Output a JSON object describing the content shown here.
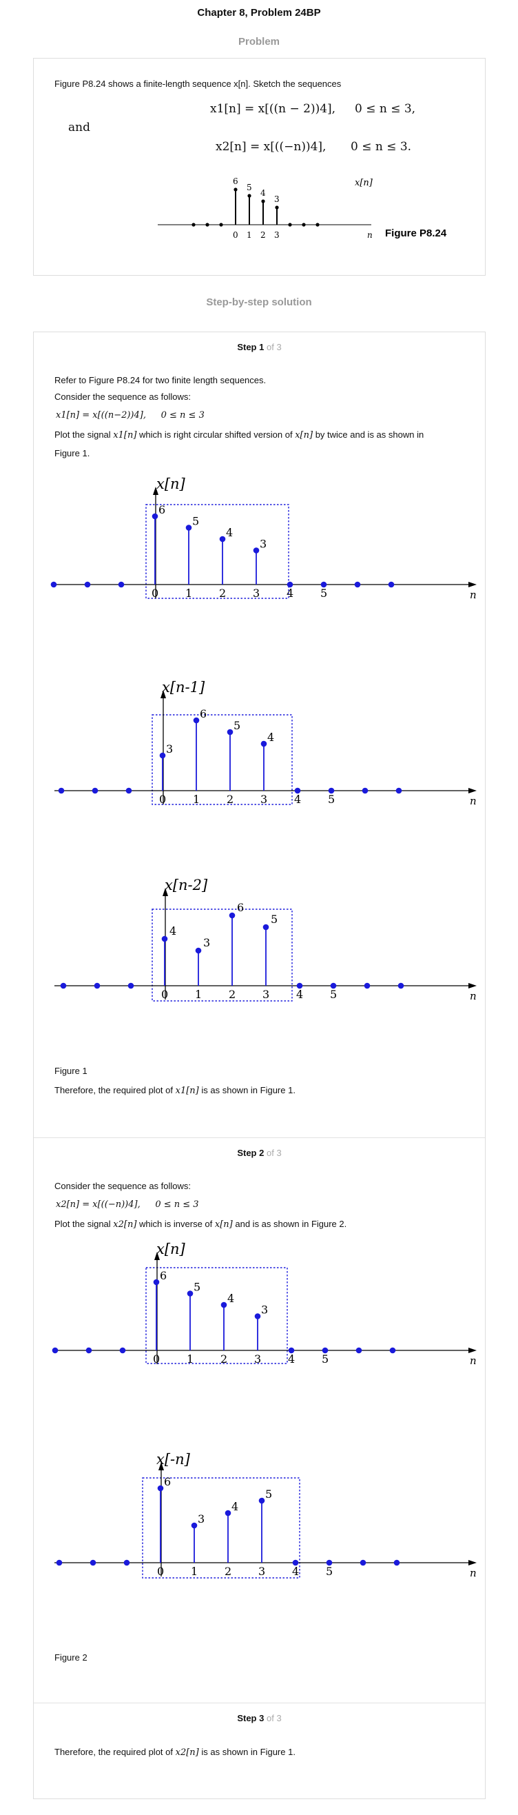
{
  "page": {
    "title": "Chapter 8, Problem 24BP",
    "problem_heading": "Problem",
    "solution_heading": "Step-by-step solution"
  },
  "problem": {
    "intro": "Figure P8.24 shows a finite-length sequence x[n]. Sketch the sequences",
    "eq1": "x1[n] = x[((n − 2))4],",
    "eq1_range": "0 ≤ n ≤ 3,",
    "and": "and",
    "eq2": "x2[n] = x[((−n))4],",
    "eq2_range": "0 ≤ n ≤ 3.",
    "figure_label": "Figure P8.24",
    "plot_label": "x[n]",
    "axis_var": "n",
    "values": [
      "6",
      "5",
      "4",
      "3"
    ],
    "ticks": [
      "0",
      "1",
      "2",
      "3"
    ]
  },
  "steps": {
    "step_word": "Step",
    "of_3": "of 3",
    "step1": {
      "num": "1",
      "p1": "Refer to Figure P8.24 for two finite length sequences.",
      "p2": "Consider the sequence as follows:",
      "eq": "x1[n] = x[((n−2))4],",
      "eq_range": "0 ≤ n ≤ 3",
      "p3_a": "Plot the signal",
      "p3_sym": "x1[n]",
      "p3_b": "which is right circular shifted version of",
      "p3_sym2": "x[n]",
      "p3_c": "by twice and is as shown in",
      "p3_d": "Figure 1.",
      "figure_caption": "Figure 1",
      "conclusion_a": "Therefore, the required plot of",
      "conclusion_sym": "x1[n]",
      "conclusion_b": "is as shown in Figure 1."
    },
    "step2": {
      "num": "2",
      "p1": "Consider the sequence as follows:",
      "eq": "x2[n] = x[((−n))4],",
      "eq_range": "0 ≤ n ≤ 3",
      "p2_a": "Plot the signal",
      "p2_sym": "x2[n]",
      "p2_b": "which is inverse of",
      "p2_sym2": "x[n]",
      "p2_c": "and is as shown in Figure 2.",
      "figure_caption": "Figure 2"
    },
    "step3": {
      "num": "3",
      "conclusion_a": "Therefore, the required plot of",
      "conclusion_sym": "x2[n]",
      "conclusion_b": "is as shown in Figure 1."
    }
  },
  "colors": {
    "stem": "#1a1adb",
    "box": "#1a1adb"
  },
  "chart_data": [
    {
      "type": "stem",
      "title": "x[n]",
      "xlabel": "n",
      "x": [
        -4,
        -3,
        -2,
        -1,
        0,
        1,
        2,
        3,
        4,
        5,
        6,
        7
      ],
      "values": [
        0,
        0,
        0,
        0,
        6,
        5,
        4,
        3,
        0,
        0,
        0,
        0
      ],
      "xticks": [
        "0",
        "1",
        "2",
        "3"
      ],
      "extra_ticks": [
        "4",
        "5"
      ]
    },
    {
      "type": "stem",
      "title": "x[n-1]",
      "xlabel": "n",
      "x": [
        -4,
        -3,
        -2,
        -1,
        0,
        1,
        2,
        3,
        4,
        5,
        6,
        7
      ],
      "values": [
        0,
        0,
        0,
        0,
        3,
        6,
        5,
        4,
        0,
        0,
        0,
        0
      ],
      "xticks": [
        "0",
        "1",
        "2",
        "3"
      ],
      "extra_ticks": [
        "4",
        "5"
      ]
    },
    {
      "type": "stem",
      "title": "x[n-2]",
      "xlabel": "n",
      "x": [
        -4,
        -3,
        -2,
        -1,
        0,
        1,
        2,
        3,
        4,
        5,
        6,
        7
      ],
      "values": [
        0,
        0,
        0,
        0,
        4,
        3,
        6,
        5,
        0,
        0,
        0,
        0
      ],
      "xticks": [
        "0",
        "1",
        "2",
        "3"
      ],
      "extra_ticks": [
        "4",
        "5"
      ]
    },
    {
      "type": "stem",
      "title": "x[n]",
      "xlabel": "n",
      "x": [
        -4,
        -3,
        -2,
        -1,
        0,
        1,
        2,
        3,
        4,
        5,
        6,
        7
      ],
      "values": [
        0,
        0,
        0,
        0,
        6,
        5,
        4,
        3,
        0,
        0,
        0,
        0
      ],
      "xticks": [
        "0",
        "1",
        "2",
        "3"
      ],
      "extra_ticks": [
        "4",
        "5"
      ]
    },
    {
      "type": "stem",
      "title": "x[-n]",
      "xlabel": "n",
      "x": [
        -4,
        -3,
        -2,
        -1,
        0,
        1,
        2,
        3,
        4,
        5,
        6,
        7
      ],
      "values": [
        0,
        0,
        0,
        0,
        6,
        3,
        4,
        5,
        0,
        0,
        0,
        0
      ],
      "xticks": [
        "0",
        "1",
        "2",
        "3"
      ],
      "extra_ticks": [
        "4",
        "5"
      ]
    }
  ]
}
